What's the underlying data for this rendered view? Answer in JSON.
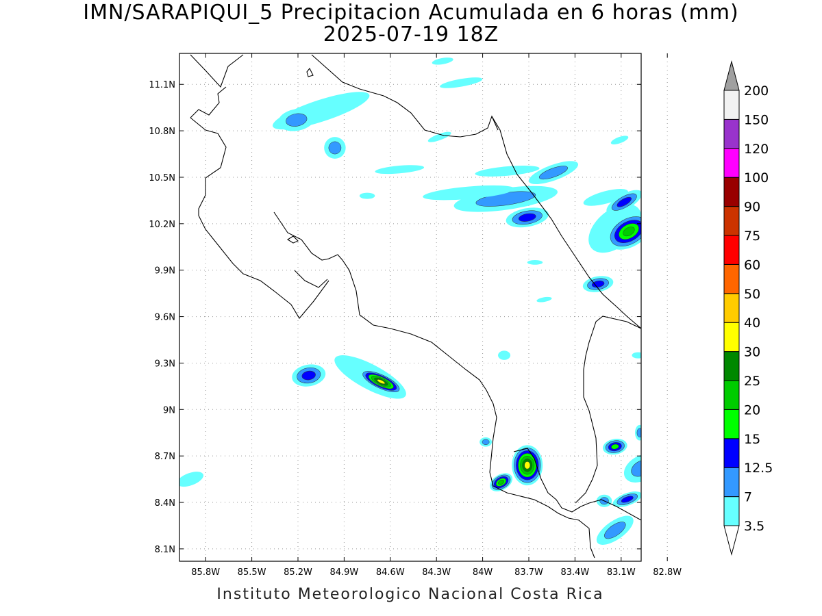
{
  "title": {
    "line1": "IMN/SARAPIQUI_5 Precipitacion Acumulada en 6 horas (mm)",
    "line2": "2025-07-19 18Z"
  },
  "footer": "Instituto Meteorologico Nacional Costa Rica",
  "axes": {
    "lon_labels": [
      "85.8W",
      "85.5W",
      "85.2W",
      "84.9W",
      "84.6W",
      "84.3W",
      "84W",
      "83.7W",
      "83.4W",
      "83.1W",
      "82.8W"
    ],
    "lon_values": [
      -85.8,
      -85.5,
      -85.2,
      -84.9,
      -84.6,
      -84.3,
      -84.0,
      -83.7,
      -83.4,
      -83.1,
      -82.8
    ],
    "lat_labels": [
      "11.1N",
      "10.8N",
      "10.5N",
      "10.2N",
      "9.9N",
      "9.6N",
      "9.3N",
      "9N",
      "8.7N",
      "8.4N",
      "8.1N"
    ],
    "lat_values": [
      11.1,
      10.8,
      10.5,
      10.2,
      9.9,
      9.6,
      9.3,
      9.0,
      8.7,
      8.4,
      8.1
    ],
    "lon_range": [
      -85.97,
      -82.97
    ],
    "lat_range": [
      8.02,
      11.3
    ],
    "grid": true
  },
  "colorbar": {
    "unit": "mm",
    "levels": [
      "3.5",
      "7",
      "12.5",
      "15",
      "20",
      "25",
      "30",
      "40",
      "50",
      "60",
      "75",
      "90",
      "100",
      "120",
      "150",
      "200"
    ],
    "colors": [
      "#66ffff",
      "#3399ff",
      "#0000ff",
      "#00ff00",
      "#00cc00",
      "#008800",
      "#ffff00",
      "#ffcc00",
      "#ff6600",
      "#ff0000",
      "#cc3300",
      "#990000",
      "#ff00ff",
      "#9933cc",
      "#f2f2f2"
    ],
    "over_color": "#a0a0a0",
    "under_color": "#ffffff"
  },
  "precip_cells": [
    {
      "lon": -85.05,
      "lat": 10.93,
      "rx_deg": 0.33,
      "ry_deg": 0.07,
      "angle": -18,
      "levels": 1
    },
    {
      "lon": -85.21,
      "lat": 10.87,
      "rx_deg": 0.12,
      "ry_deg": 0.07,
      "angle": -10,
      "levels": 2
    },
    {
      "lon": -84.96,
      "lat": 10.69,
      "rx_deg": 0.07,
      "ry_deg": 0.07,
      "angle": 0,
      "levels": 2
    },
    {
      "lon": -84.54,
      "lat": 10.55,
      "rx_deg": 0.16,
      "ry_deg": 0.025,
      "angle": -5,
      "levels": 1
    },
    {
      "lon": -83.84,
      "lat": 10.54,
      "rx_deg": 0.21,
      "ry_deg": 0.03,
      "angle": -5,
      "levels": 1
    },
    {
      "lon": -83.54,
      "lat": 10.53,
      "rx_deg": 0.17,
      "ry_deg": 0.05,
      "angle": -20,
      "levels": 2
    },
    {
      "lon": -83.85,
      "lat": 10.36,
      "rx_deg": 0.34,
      "ry_deg": 0.07,
      "angle": -8,
      "levels": 2
    },
    {
      "lon": -84.09,
      "lat": 10.4,
      "rx_deg": 0.3,
      "ry_deg": 0.04,
      "angle": -5,
      "levels": 1
    },
    {
      "lon": -83.71,
      "lat": 10.24,
      "rx_deg": 0.14,
      "ry_deg": 0.06,
      "angle": -10,
      "levels": 3
    },
    {
      "lon": -83.2,
      "lat": 10.37,
      "rx_deg": 0.15,
      "ry_deg": 0.04,
      "angle": -15,
      "levels": 1
    },
    {
      "lon": -83.14,
      "lat": 10.17,
      "rx_deg": 0.2,
      "ry_deg": 0.12,
      "angle": -40,
      "levels": 1
    },
    {
      "lon": -83.05,
      "lat": 10.15,
      "rx_deg": 0.16,
      "ry_deg": 0.1,
      "angle": -30,
      "levels": 5
    },
    {
      "lon": -83.08,
      "lat": 10.34,
      "rx_deg": 0.13,
      "ry_deg": 0.05,
      "angle": -30,
      "levels": 3
    },
    {
      "lon": -83.25,
      "lat": 9.81,
      "rx_deg": 0.1,
      "ry_deg": 0.05,
      "angle": -10,
      "levels": 3
    },
    {
      "lon": -83.66,
      "lat": 9.95,
      "rx_deg": 0.05,
      "ry_deg": 0.015,
      "angle": 0,
      "levels": 1
    },
    {
      "lon": -85.13,
      "lat": 9.22,
      "rx_deg": 0.11,
      "ry_deg": 0.07,
      "angle": -10,
      "levels": 3
    },
    {
      "lon": -84.73,
      "lat": 9.21,
      "rx_deg": 0.26,
      "ry_deg": 0.08,
      "angle": 28,
      "levels": 1
    },
    {
      "lon": -84.66,
      "lat": 9.18,
      "rx_deg": 0.15,
      "ry_deg": 0.05,
      "angle": 25,
      "levels": 7
    },
    {
      "lon": -83.88,
      "lat": 8.53,
      "rx_deg": 0.08,
      "ry_deg": 0.05,
      "angle": -30,
      "levels": 5
    },
    {
      "lon": -83.71,
      "lat": 8.64,
      "rx_deg": 0.1,
      "ry_deg": 0.13,
      "angle": 0,
      "levels": 7
    },
    {
      "lon": -83.14,
      "lat": 8.76,
      "rx_deg": 0.08,
      "ry_deg": 0.05,
      "angle": -10,
      "levels": 4
    },
    {
      "lon": -83.14,
      "lat": 8.22,
      "rx_deg": 0.14,
      "ry_deg": 0.06,
      "angle": -35,
      "levels": 2
    },
    {
      "lon": -83.06,
      "lat": 8.42,
      "rx_deg": 0.1,
      "ry_deg": 0.04,
      "angle": -20,
      "levels": 3
    },
    {
      "lon": -82.97,
      "lat": 8.62,
      "rx_deg": 0.12,
      "ry_deg": 0.08,
      "angle": -30,
      "levels": 2
    },
    {
      "lon": -83.86,
      "lat": 9.35,
      "rx_deg": 0.04,
      "ry_deg": 0.03,
      "angle": 0,
      "levels": 1
    },
    {
      "lon": -85.9,
      "lat": 8.55,
      "rx_deg": 0.09,
      "ry_deg": 0.04,
      "angle": -20,
      "levels": 1
    },
    {
      "lon": -84.14,
      "lat": 11.11,
      "rx_deg": 0.14,
      "ry_deg": 0.025,
      "angle": -10,
      "levels": 1
    },
    {
      "lon": -84.26,
      "lat": 11.25,
      "rx_deg": 0.07,
      "ry_deg": 0.02,
      "angle": -10,
      "levels": 1
    },
    {
      "lon": -84.75,
      "lat": 10.38,
      "rx_deg": 0.05,
      "ry_deg": 0.02,
      "angle": 0,
      "levels": 1
    },
    {
      "lon": -83.6,
      "lat": 9.71,
      "rx_deg": 0.05,
      "ry_deg": 0.015,
      "angle": -10,
      "levels": 1
    },
    {
      "lon": -83.98,
      "lat": 8.79,
      "rx_deg": 0.04,
      "ry_deg": 0.03,
      "angle": 0,
      "levels": 2
    },
    {
      "lon": -83.21,
      "lat": 8.41,
      "rx_deg": 0.05,
      "ry_deg": 0.04,
      "angle": 0,
      "levels": 2
    },
    {
      "lon": -82.99,
      "lat": 9.35,
      "rx_deg": 0.04,
      "ry_deg": 0.02,
      "angle": 0,
      "levels": 1
    },
    {
      "lon": -82.98,
      "lat": 8.85,
      "rx_deg": 0.03,
      "ry_deg": 0.05,
      "angle": 0,
      "levels": 2
    },
    {
      "lon": -83.11,
      "lat": 10.74,
      "rx_deg": 0.06,
      "ry_deg": 0.02,
      "angle": -20,
      "levels": 1
    },
    {
      "lon": -84.28,
      "lat": 10.76,
      "rx_deg": 0.08,
      "ry_deg": 0.02,
      "angle": -20,
      "levels": 1
    }
  ]
}
